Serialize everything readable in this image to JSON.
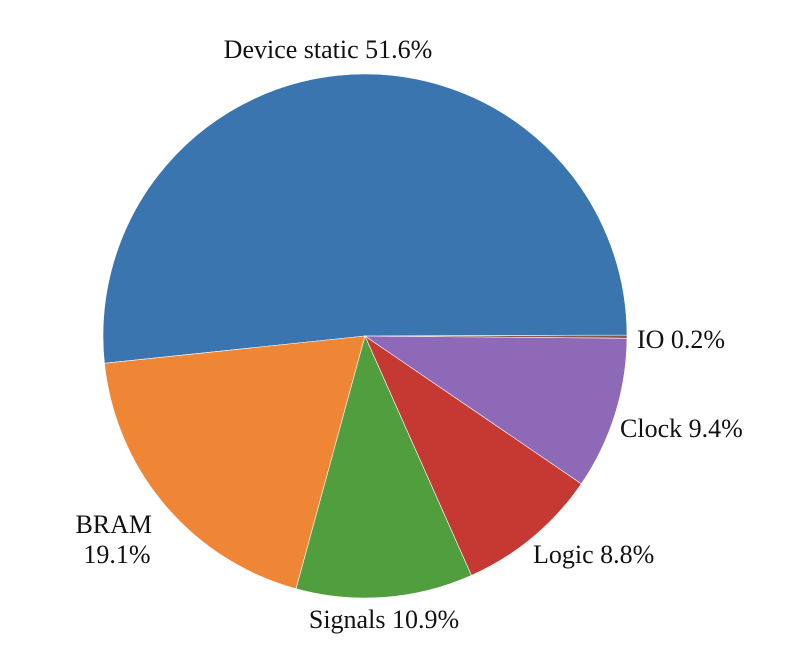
{
  "chart_data": {
    "type": "pie",
    "slices": [
      {
        "key": "io",
        "label": "IO 0.2%",
        "name": "IO",
        "value": 0.2,
        "color": "#8c564b"
      },
      {
        "key": "device-static",
        "label": "Device static 51.6%",
        "name": "Device static",
        "value": 51.6,
        "color": "#3a75af"
      },
      {
        "key": "bram",
        "label_lines": [
          "BRAM",
          "19.1%"
        ],
        "name": "BRAM",
        "value": 19.1,
        "color": "#ef8636"
      },
      {
        "key": "signals",
        "label": "Signals 10.9%",
        "name": "Signals",
        "value": 10.9,
        "color": "#519e3e"
      },
      {
        "key": "logic",
        "label": "Logic 8.8%",
        "name": "Logic",
        "value": 8.8,
        "color": "#c53932"
      },
      {
        "key": "clock",
        "label": "Clock 9.4%",
        "name": "Clock",
        "value": 9.4,
        "color": "#8d69b8"
      }
    ]
  }
}
